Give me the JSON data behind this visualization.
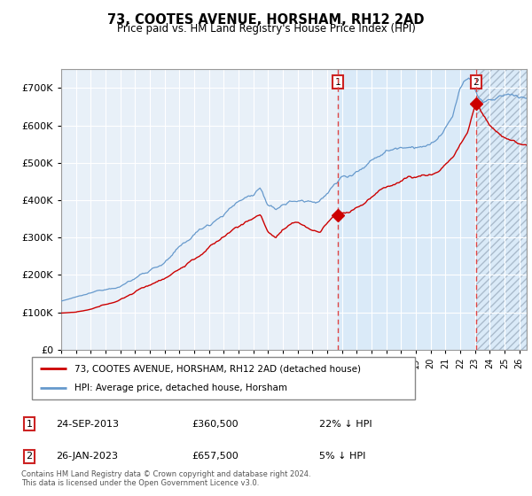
{
  "title": "73, COOTES AVENUE, HORSHAM, RH12 2AD",
  "subtitle": "Price paid vs. HM Land Registry's House Price Index (HPI)",
  "legend_line1": "73, COOTES AVENUE, HORSHAM, RH12 2AD (detached house)",
  "legend_line2": "HPI: Average price, detached house, Horsham",
  "footnote": "Contains HM Land Registry data © Crown copyright and database right 2024.\nThis data is licensed under the Open Government Licence v3.0.",
  "annotation1_date": "24-SEP-2013",
  "annotation1_price": "£360,500",
  "annotation1_hpi": "22% ↓ HPI",
  "annotation2_date": "26-JAN-2023",
  "annotation2_price": "£657,500",
  "annotation2_hpi": "5% ↓ HPI",
  "sale1_x": 2013.73,
  "sale1_y": 360500,
  "sale2_x": 2023.07,
  "sale2_y": 657500,
  "red_color": "#cc0000",
  "blue_color": "#6699cc",
  "background_color": "#e8f0f8",
  "shade_color": "#d8e8f5",
  "ylim": [
    0,
    750000
  ],
  "xlim_start": 1995,
  "xlim_end": 2026.5
}
